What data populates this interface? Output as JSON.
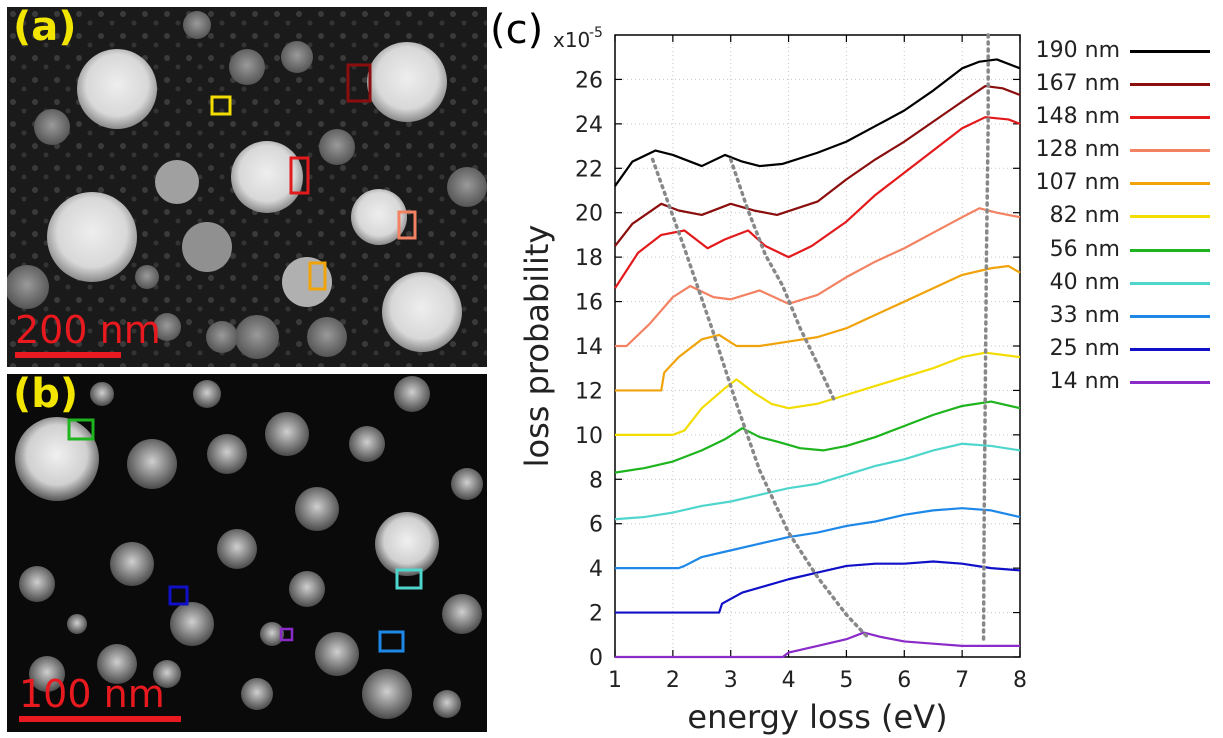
{
  "panels": {
    "a": {
      "label": "(a)",
      "scale_text": "200 nm"
    },
    "b": {
      "label": "(b)",
      "scale_text": "100 nm"
    },
    "c": {
      "label": "(c)"
    }
  },
  "chart_data": {
    "type": "line",
    "xlabel": "energy loss (eV)",
    "ylabel": "loss probability",
    "y_multiplier_label": "x10",
    "y_multiplier_exp": "-5",
    "xlim": [
      1,
      8
    ],
    "ylim": [
      0,
      28
    ],
    "x_ticks": [
      1,
      2,
      3,
      4,
      5,
      6,
      7,
      8
    ],
    "y_ticks": [
      0,
      2,
      4,
      6,
      8,
      10,
      12,
      14,
      16,
      18,
      20,
      22,
      24,
      26
    ],
    "grid": true,
    "legend_position": "right",
    "series": [
      {
        "name": "190 nm",
        "color": "#000000",
        "x": [
          1.0,
          1.3,
          1.7,
          2.0,
          2.5,
          2.9,
          3.2,
          3.5,
          3.9,
          4.5,
          5.0,
          5.5,
          6.0,
          6.5,
          7.0,
          7.3,
          7.6,
          8.0
        ],
        "y": [
          21.2,
          22.3,
          22.8,
          22.6,
          22.1,
          22.6,
          22.3,
          22.1,
          22.2,
          22.7,
          23.2,
          23.9,
          24.6,
          25.5,
          26.5,
          26.8,
          26.9,
          26.5
        ]
      },
      {
        "name": "167 nm",
        "color": "#8b0e0e",
        "x": [
          1.0,
          1.3,
          1.8,
          2.1,
          2.5,
          3.0,
          3.4,
          3.8,
          4.5,
          5.0,
          5.5,
          6.0,
          6.5,
          7.0,
          7.4,
          7.7,
          8.0
        ],
        "y": [
          18.5,
          19.5,
          20.4,
          20.1,
          19.9,
          20.4,
          20.1,
          19.9,
          20.5,
          21.5,
          22.4,
          23.2,
          24.1,
          25.0,
          25.7,
          25.6,
          25.3
        ]
      },
      {
        "name": "148 nm",
        "color": "#e31a1c",
        "x": [
          1.0,
          1.4,
          1.8,
          2.2,
          2.6,
          2.9,
          3.3,
          3.6,
          4.0,
          4.4,
          5.0,
          5.5,
          6.0,
          6.5,
          7.0,
          7.4,
          7.8,
          8.0
        ],
        "y": [
          16.6,
          18.2,
          19.0,
          19.2,
          18.4,
          18.8,
          19.2,
          18.5,
          18.0,
          18.5,
          19.6,
          20.8,
          21.8,
          22.8,
          23.8,
          24.3,
          24.2,
          24.0
        ]
      },
      {
        "name": "128 nm",
        "color": "#f28262",
        "x": [
          1.0,
          1.2,
          1.6,
          2.0,
          2.3,
          2.7,
          3.0,
          3.5,
          4.0,
          4.5,
          5.0,
          5.5,
          6.0,
          6.5,
          7.0,
          7.3,
          7.6,
          8.0
        ],
        "y": [
          14.0,
          14.0,
          15.0,
          16.2,
          16.7,
          16.2,
          16.1,
          16.5,
          15.9,
          16.3,
          17.1,
          17.8,
          18.4,
          19.1,
          19.8,
          20.2,
          20.0,
          19.8
        ]
      },
      {
        "name": "107 nm",
        "color": "#f0a30a",
        "x": [
          1.0,
          1.8,
          1.85,
          2.1,
          2.5,
          2.8,
          3.1,
          3.5,
          4.0,
          4.5,
          5.0,
          5.5,
          6.0,
          6.5,
          7.0,
          7.5,
          7.8,
          8.0
        ],
        "y": [
          12.0,
          12.0,
          12.8,
          13.5,
          14.3,
          14.5,
          14.0,
          14.0,
          14.2,
          14.4,
          14.8,
          15.4,
          16.0,
          16.6,
          17.2,
          17.5,
          17.6,
          17.3
        ]
      },
      {
        "name": "82 nm",
        "color": "#f3dc00",
        "x": [
          1.0,
          2.0,
          2.2,
          2.5,
          2.9,
          3.1,
          3.4,
          3.7,
          4.0,
          4.5,
          5.0,
          5.5,
          6.0,
          6.5,
          7.0,
          7.4,
          7.7,
          8.0
        ],
        "y": [
          10.0,
          10.0,
          10.2,
          11.2,
          12.1,
          12.5,
          11.9,
          11.4,
          11.2,
          11.4,
          11.8,
          12.2,
          12.6,
          13.0,
          13.5,
          13.7,
          13.6,
          13.5
        ]
      },
      {
        "name": "56 nm",
        "color": "#1eb41e",
        "x": [
          1.0,
          1.5,
          2.0,
          2.5,
          2.9,
          3.2,
          3.5,
          3.8,
          4.2,
          4.6,
          5.0,
          5.5,
          6.0,
          6.5,
          7.0,
          7.5,
          8.0
        ],
        "y": [
          8.3,
          8.5,
          8.8,
          9.3,
          9.8,
          10.3,
          9.9,
          9.7,
          9.4,
          9.3,
          9.5,
          9.9,
          10.4,
          10.9,
          11.3,
          11.5,
          11.2
        ]
      },
      {
        "name": "40 nm",
        "color": "#4fd6cc",
        "x": [
          1.0,
          1.5,
          2.0,
          2.5,
          3.0,
          3.5,
          4.0,
          4.5,
          5.0,
          5.5,
          6.0,
          6.5,
          7.0,
          7.5,
          8.0
        ],
        "y": [
          6.2,
          6.3,
          6.5,
          6.8,
          7.0,
          7.3,
          7.6,
          7.8,
          8.2,
          8.6,
          8.9,
          9.3,
          9.6,
          9.5,
          9.3
        ]
      },
      {
        "name": "33 nm",
        "color": "#1e88e8",
        "x": [
          1.0,
          2.1,
          2.2,
          2.5,
          3.0,
          3.5,
          4.0,
          4.5,
          5.0,
          5.5,
          6.0,
          6.5,
          7.0,
          7.5,
          8.0
        ],
        "y": [
          4.0,
          4.0,
          4.1,
          4.5,
          4.8,
          5.1,
          5.4,
          5.6,
          5.9,
          6.1,
          6.4,
          6.6,
          6.7,
          6.6,
          6.3
        ]
      },
      {
        "name": "25 nm",
        "color": "#1010c8",
        "x": [
          1.0,
          2.8,
          2.85,
          3.2,
          3.6,
          4.0,
          4.5,
          5.0,
          5.5,
          6.0,
          6.5,
          7.0,
          7.5,
          8.0
        ],
        "y": [
          2.0,
          2.0,
          2.4,
          2.9,
          3.2,
          3.5,
          3.8,
          4.1,
          4.2,
          4.2,
          4.3,
          4.2,
          4.0,
          3.9
        ]
      },
      {
        "name": "14 nm",
        "color": "#8a2ac8",
        "x": [
          1.0,
          3.9,
          4.0,
          4.5,
          5.0,
          5.3,
          5.6,
          6.0,
          6.5,
          7.0,
          7.5,
          8.0
        ],
        "y": [
          0.0,
          0.0,
          0.2,
          0.5,
          0.8,
          1.1,
          0.9,
          0.7,
          0.6,
          0.5,
          0.5,
          0.5
        ]
      }
    ],
    "guide_lines": [
      {
        "x": [
          1.65,
          2.2,
          2.7,
          3.1,
          3.5,
          4.0,
          4.5,
          5.0,
          5.4
        ],
        "y": [
          22.4,
          18.4,
          14.6,
          11.4,
          8.4,
          5.6,
          3.6,
          1.9,
          0.8
        ]
      },
      {
        "x": [
          3.0,
          3.3,
          3.6,
          3.9,
          4.2,
          4.5,
          4.8
        ],
        "y": [
          22.4,
          20.1,
          18.1,
          16.7,
          14.8,
          13.2,
          11.5
        ]
      },
      {
        "x": [
          7.45,
          7.45,
          7.42,
          7.4,
          7.38,
          7.37
        ],
        "y": [
          28.0,
          24.0,
          18.0,
          12.0,
          6.0,
          0.6
        ]
      }
    ]
  }
}
